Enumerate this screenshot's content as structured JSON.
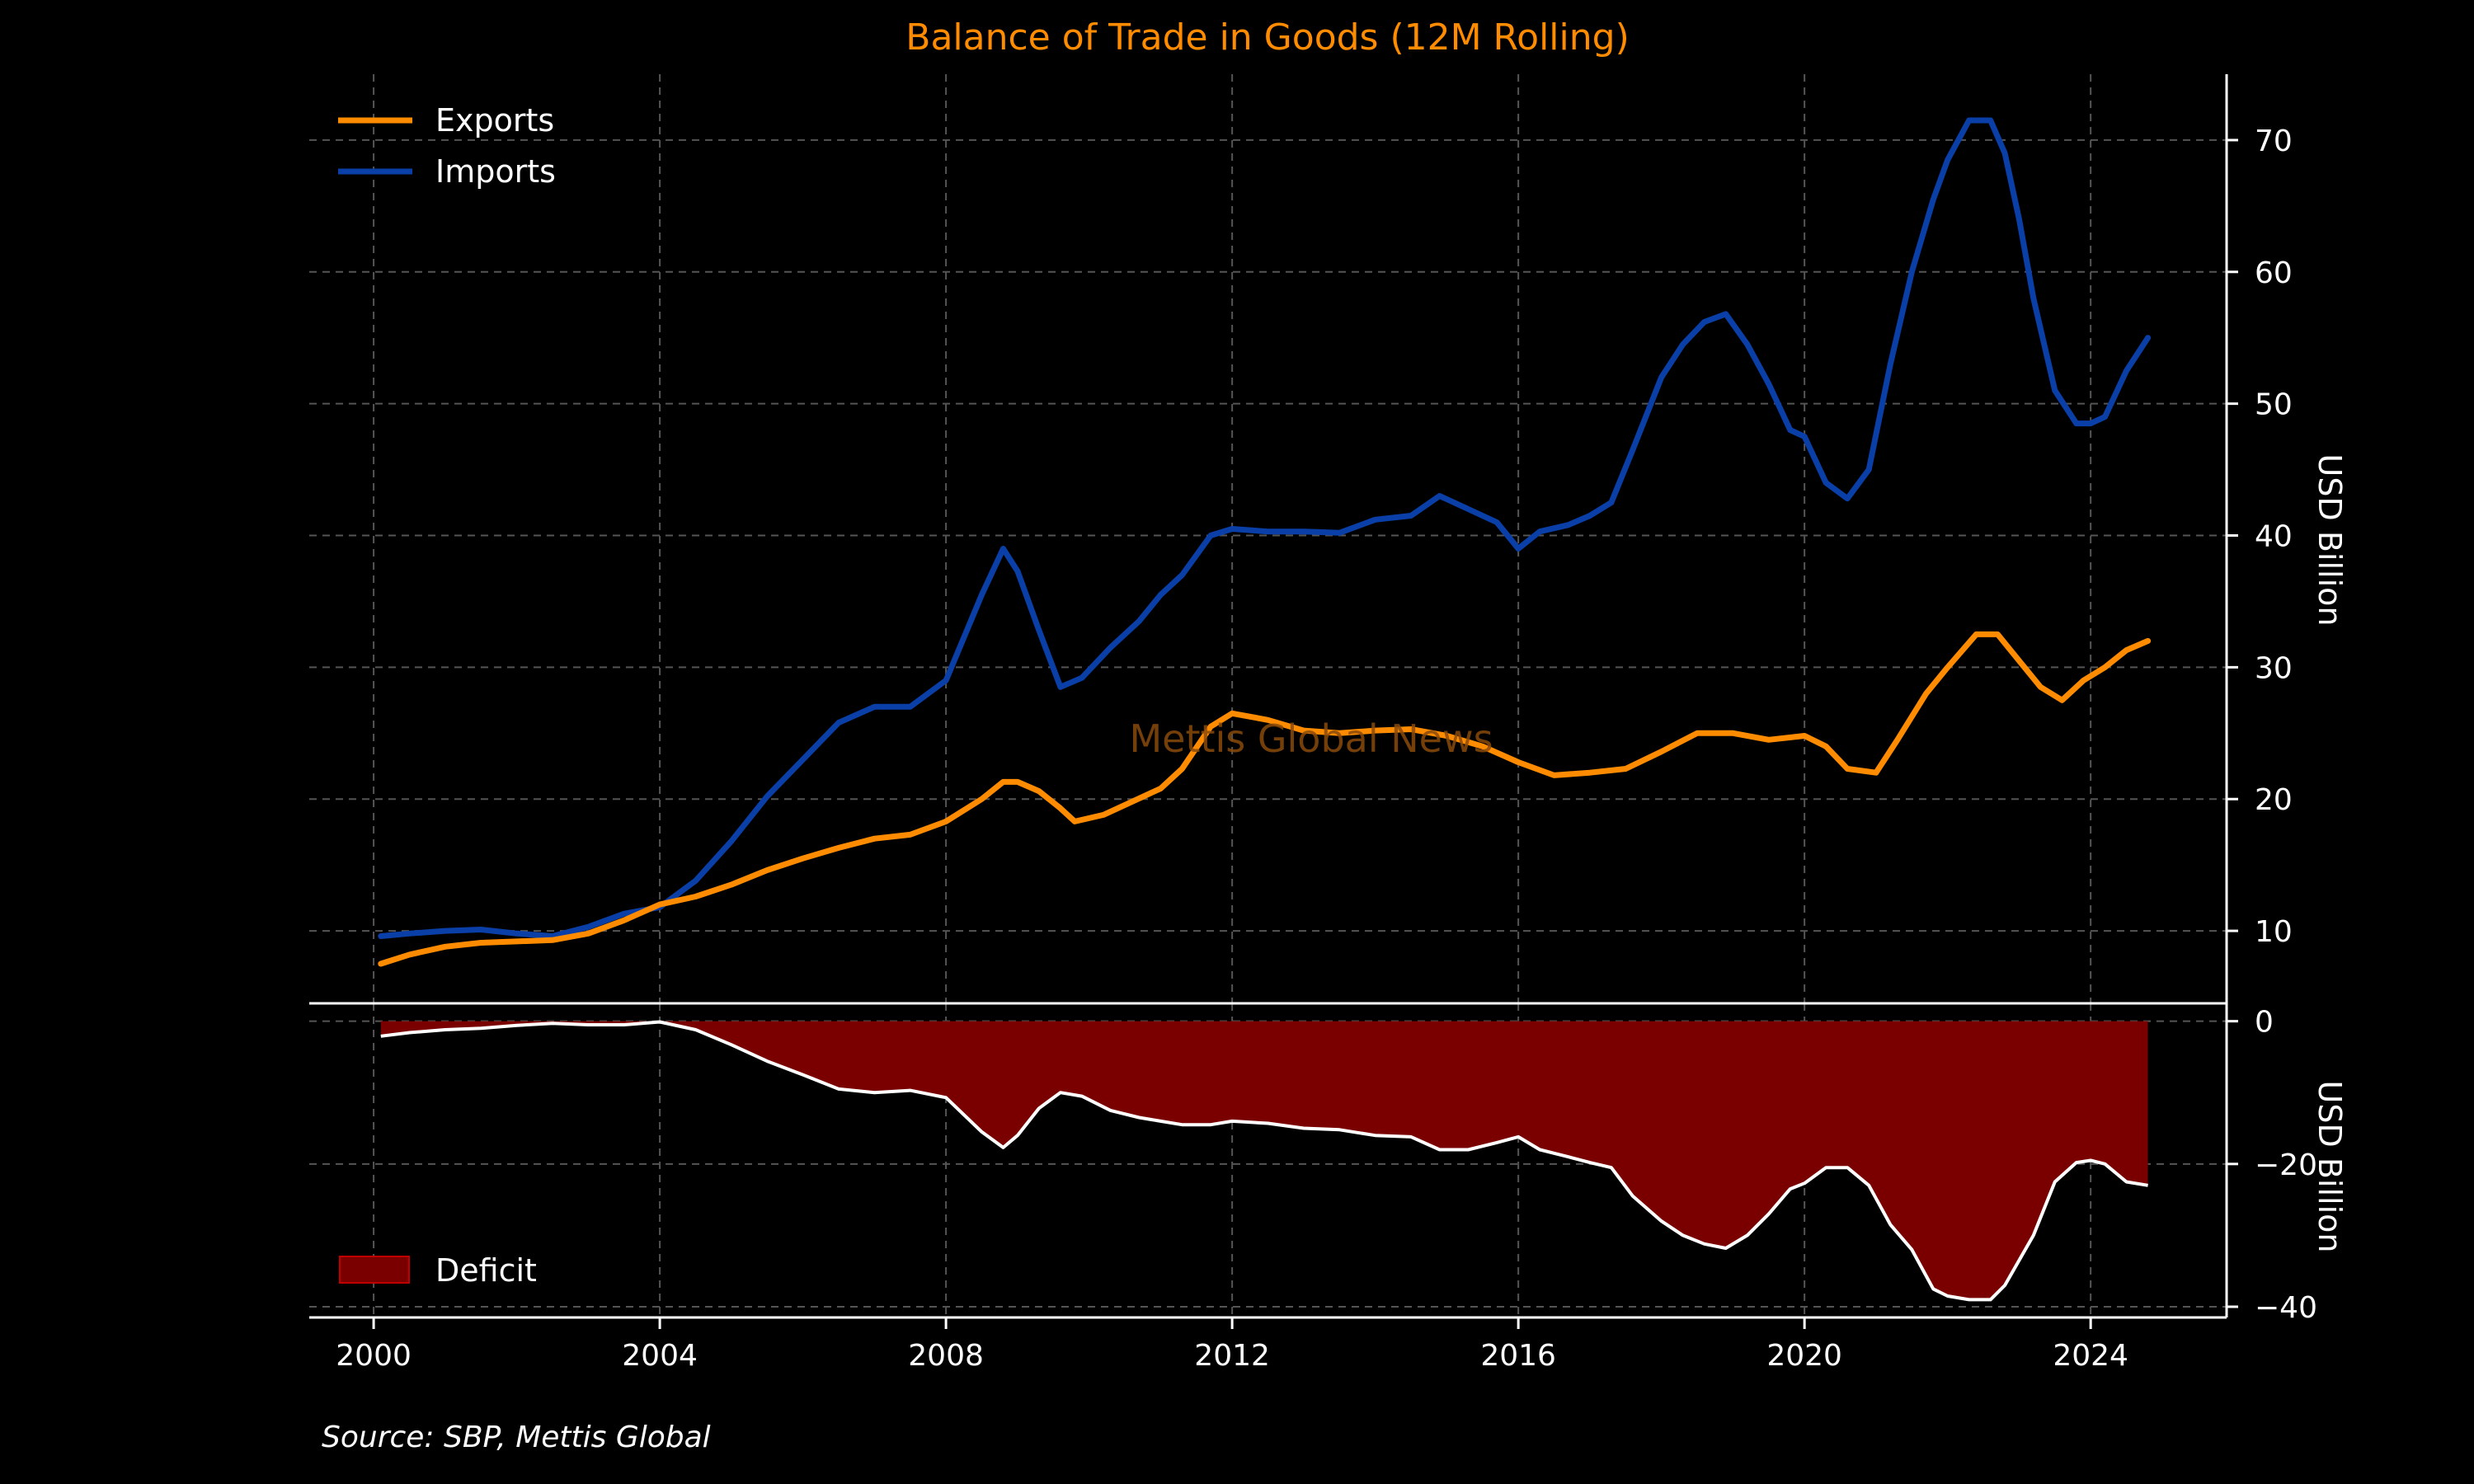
{
  "colors": {
    "background": "#000000",
    "exports": "#FF8C00",
    "imports": "#0A3FA8",
    "balance_line": "#FFFFFF",
    "deficit_fill": "#7A0000",
    "grid": "#555555",
    "text": "#FFFFFF",
    "title": "#FF8C00",
    "watermark": "#8A4A0A"
  },
  "title": "Balance of Trade in Goods (12M Rolling)",
  "watermark": "Mettis Global News",
  "source": "Source: SBP, Mettis Global",
  "chart_data": [
    {
      "type": "line",
      "title": "Balance of Trade in Goods (12M Rolling)",
      "ylabel": "USD Billion",
      "ylim": [
        4.5,
        75
      ],
      "yticks": [
        10,
        20,
        30,
        40,
        50,
        60,
        70
      ],
      "xlim": [
        1999.1,
        2025.9
      ],
      "xticks": [
        2000,
        2004,
        2008,
        2012,
        2016,
        2020,
        2024
      ],
      "grid": true,
      "legend_position": "top-left",
      "series": [
        {
          "name": "Exports",
          "x": [
            2000.1,
            2000.5,
            2001.0,
            2001.5,
            2002.0,
            2002.5,
            2003.0,
            2003.5,
            2004.0,
            2004.5,
            2005.0,
            2005.5,
            2006.0,
            2006.5,
            2007.0,
            2007.5,
            2008.0,
            2008.5,
            2008.8,
            2009.0,
            2009.3,
            2009.6,
            2009.8,
            2010.2,
            2010.6,
            2011.0,
            2011.3,
            2011.7,
            2012.0,
            2012.5,
            2013.0,
            2013.5,
            2014.0,
            2014.5,
            2015.0,
            2015.5,
            2016.0,
            2016.5,
            2017.0,
            2017.5,
            2018.0,
            2018.5,
            2019.0,
            2019.5,
            2020.0,
            2020.3,
            2020.6,
            2021.0,
            2021.3,
            2021.7,
            2022.0,
            2022.4,
            2022.7,
            2023.0,
            2023.3,
            2023.6,
            2023.9,
            2024.2,
            2024.5,
            2024.8
          ],
          "values": [
            7.5,
            8.2,
            8.8,
            9.1,
            9.2,
            9.3,
            9.8,
            10.8,
            12.0,
            12.6,
            13.5,
            14.6,
            15.5,
            16.3,
            17.0,
            17.3,
            18.3,
            20.0,
            21.3,
            21.3,
            20.6,
            19.3,
            18.3,
            18.8,
            19.8,
            20.8,
            22.3,
            25.5,
            26.5,
            26.0,
            25.2,
            25.0,
            25.2,
            25.3,
            24.8,
            24.0,
            22.8,
            21.8,
            22.0,
            22.3,
            23.6,
            25.0,
            25.0,
            24.5,
            24.8,
            24.0,
            22.3,
            22.0,
            24.5,
            28.0,
            30.0,
            32.5,
            32.5,
            30.5,
            28.5,
            27.5,
            29.0,
            30.0,
            31.3,
            32.0
          ]
        },
        {
          "name": "Imports",
          "x": [
            2000.1,
            2000.5,
            2001.0,
            2001.5,
            2002.0,
            2002.5,
            2003.0,
            2003.5,
            2004.0,
            2004.5,
            2005.0,
            2005.5,
            2006.0,
            2006.5,
            2007.0,
            2007.5,
            2008.0,
            2008.5,
            2008.8,
            2009.0,
            2009.3,
            2009.6,
            2009.9,
            2010.3,
            2010.7,
            2011.0,
            2011.3,
            2011.7,
            2012.0,
            2012.5,
            2013.0,
            2013.5,
            2014.0,
            2014.5,
            2014.9,
            2015.3,
            2015.7,
            2016.0,
            2016.3,
            2016.7,
            2017.0,
            2017.3,
            2017.6,
            2018.0,
            2018.3,
            2018.6,
            2018.9,
            2019.2,
            2019.5,
            2019.8,
            2020.0,
            2020.3,
            2020.6,
            2020.9,
            2021.2,
            2021.5,
            2021.8,
            2022.0,
            2022.3,
            2022.6,
            2022.8,
            2023.0,
            2023.2,
            2023.5,
            2023.8,
            2024.0,
            2024.2,
            2024.5,
            2024.8
          ],
          "values": [
            9.6,
            9.8,
            10.0,
            10.1,
            9.8,
            9.6,
            10.3,
            11.3,
            11.8,
            13.8,
            16.8,
            20.2,
            23.0,
            25.8,
            27.0,
            27.0,
            29.0,
            35.5,
            39.0,
            37.3,
            32.8,
            28.5,
            29.2,
            31.5,
            33.5,
            35.5,
            37.0,
            40.0,
            40.5,
            40.3,
            40.3,
            40.2,
            41.2,
            41.5,
            43.0,
            42.0,
            41.0,
            39.0,
            40.3,
            40.8,
            41.5,
            42.5,
            46.5,
            52.0,
            54.5,
            56.2,
            56.8,
            54.5,
            51.5,
            48.0,
            47.5,
            44.0,
            42.8,
            45.0,
            53.0,
            60.0,
            65.5,
            68.5,
            71.5,
            71.5,
            69.0,
            64.0,
            58.0,
            51.0,
            48.5,
            48.5,
            49.0,
            52.5,
            55.0
          ]
        }
      ]
    },
    {
      "type": "area",
      "ylabel": "USD Billion",
      "ylim": [
        -41.5,
        2.5
      ],
      "yticks": [
        0,
        -20,
        -40
      ],
      "xlim": [
        1999.1,
        2025.9
      ],
      "xticks": [
        2000,
        2004,
        2008,
        2012,
        2016,
        2020,
        2024
      ],
      "grid": true,
      "legend_position": "bottom-left",
      "series": [
        {
          "name": "Deficit",
          "x": [
            2000.1,
            2000.5,
            2001.0,
            2001.5,
            2002.0,
            2002.5,
            2003.0,
            2003.5,
            2004.0,
            2004.5,
            2005.0,
            2005.5,
            2006.0,
            2006.5,
            2007.0,
            2007.5,
            2008.0,
            2008.5,
            2008.8,
            2009.0,
            2009.3,
            2009.6,
            2009.9,
            2010.3,
            2010.7,
            2011.0,
            2011.3,
            2011.7,
            2012.0,
            2012.5,
            2013.0,
            2013.5,
            2014.0,
            2014.5,
            2014.9,
            2015.3,
            2015.7,
            2016.0,
            2016.3,
            2016.7,
            2017.0,
            2017.3,
            2017.6,
            2018.0,
            2018.3,
            2018.6,
            2018.9,
            2019.2,
            2019.5,
            2019.8,
            2020.0,
            2020.3,
            2020.6,
            2020.9,
            2021.2,
            2021.5,
            2021.8,
            2022.0,
            2022.3,
            2022.6,
            2022.8,
            2023.0,
            2023.2,
            2023.5,
            2023.8,
            2024.0,
            2024.2,
            2024.5,
            2024.8
          ],
          "values": [
            -2.1,
            -1.6,
            -1.2,
            -1.0,
            -0.6,
            -0.3,
            -0.5,
            -0.5,
            -0.1,
            -1.2,
            -3.3,
            -5.6,
            -7.5,
            -9.5,
            -10.0,
            -9.7,
            -10.7,
            -15.5,
            -17.7,
            -16.0,
            -12.2,
            -10.0,
            -10.5,
            -12.5,
            -13.5,
            -14.0,
            -14.5,
            -14.5,
            -14.0,
            -14.3,
            -15.0,
            -15.2,
            -16.0,
            -16.2,
            -18.0,
            -18.0,
            -17.0,
            -16.2,
            -18.0,
            -19.0,
            -19.8,
            -20.5,
            -24.5,
            -28.0,
            -30.0,
            -31.2,
            -31.8,
            -30.0,
            -27.0,
            -23.5,
            -22.7,
            -20.5,
            -20.5,
            -23.0,
            -28.5,
            -32.0,
            -37.5,
            -38.5,
            -39.0,
            -39.0,
            -37.0,
            -33.5,
            -30.0,
            -22.5,
            -19.8,
            -19.5,
            -20.0,
            -22.5,
            -23.0
          ]
        }
      ]
    }
  ]
}
